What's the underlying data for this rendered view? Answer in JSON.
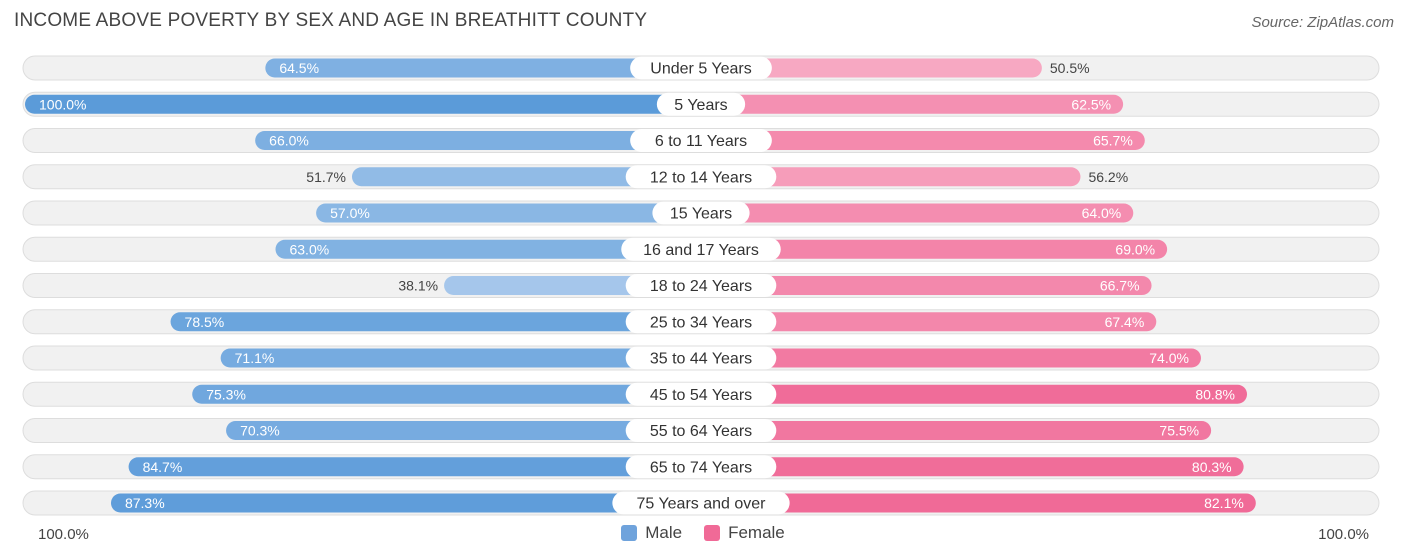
{
  "chart_data": {
    "type": "bar",
    "orientation": "horizontal-diverging",
    "title": "INCOME ABOVE POVERTY BY SEX AND AGE IN BREATHITT COUNTY",
    "source": "Source: ZipAtlas.com",
    "categories": [
      "Under 5 Years",
      "5 Years",
      "6 to 11 Years",
      "12 to 14 Years",
      "15 Years",
      "16 and 17 Years",
      "18 to 24 Years",
      "25 to 34 Years",
      "35 to 44 Years",
      "45 to 54 Years",
      "55 to 64 Years",
      "65 to 74 Years",
      "75 Years and over"
    ],
    "series": [
      {
        "name": "Male",
        "values": [
          64.5,
          100.0,
          66.0,
          51.7,
          57.0,
          63.0,
          38.1,
          78.5,
          71.1,
          75.3,
          70.3,
          84.7,
          87.3
        ],
        "labels": [
          "64.5%",
          "100.0%",
          "66.0%",
          "51.7%",
          "57.0%",
          "63.0%",
          "38.1%",
          "78.5%",
          "71.1%",
          "75.3%",
          "70.3%",
          "84.7%",
          "87.3%"
        ]
      },
      {
        "name": "Female",
        "values": [
          50.5,
          62.5,
          65.7,
          56.2,
          64.0,
          69.0,
          66.7,
          67.4,
          74.0,
          80.8,
          75.5,
          80.3,
          82.1
        ],
        "labels": [
          "50.5%",
          "62.5%",
          "65.7%",
          "56.2%",
          "64.0%",
          "69.0%",
          "66.7%",
          "67.4%",
          "74.0%",
          "80.8%",
          "75.5%",
          "80.3%",
          "82.1%"
        ]
      }
    ],
    "xlim": [
      0,
      100
    ],
    "axis_left_label": "100.0%",
    "axis_right_label": "100.0%",
    "legend_position": "bottom-center",
    "colors": {
      "male_dark": "#5b9bd9",
      "male_light": "#a9c9ec",
      "female_dark": "#f06a97",
      "female_light": "#f7a9c3",
      "track": "#f1f1f1",
      "track_border": "#dddddd"
    }
  },
  "legend": {
    "male_label": "Male",
    "female_label": "Female",
    "male_color": "#6fa3dc",
    "female_color": "#f06a97"
  }
}
